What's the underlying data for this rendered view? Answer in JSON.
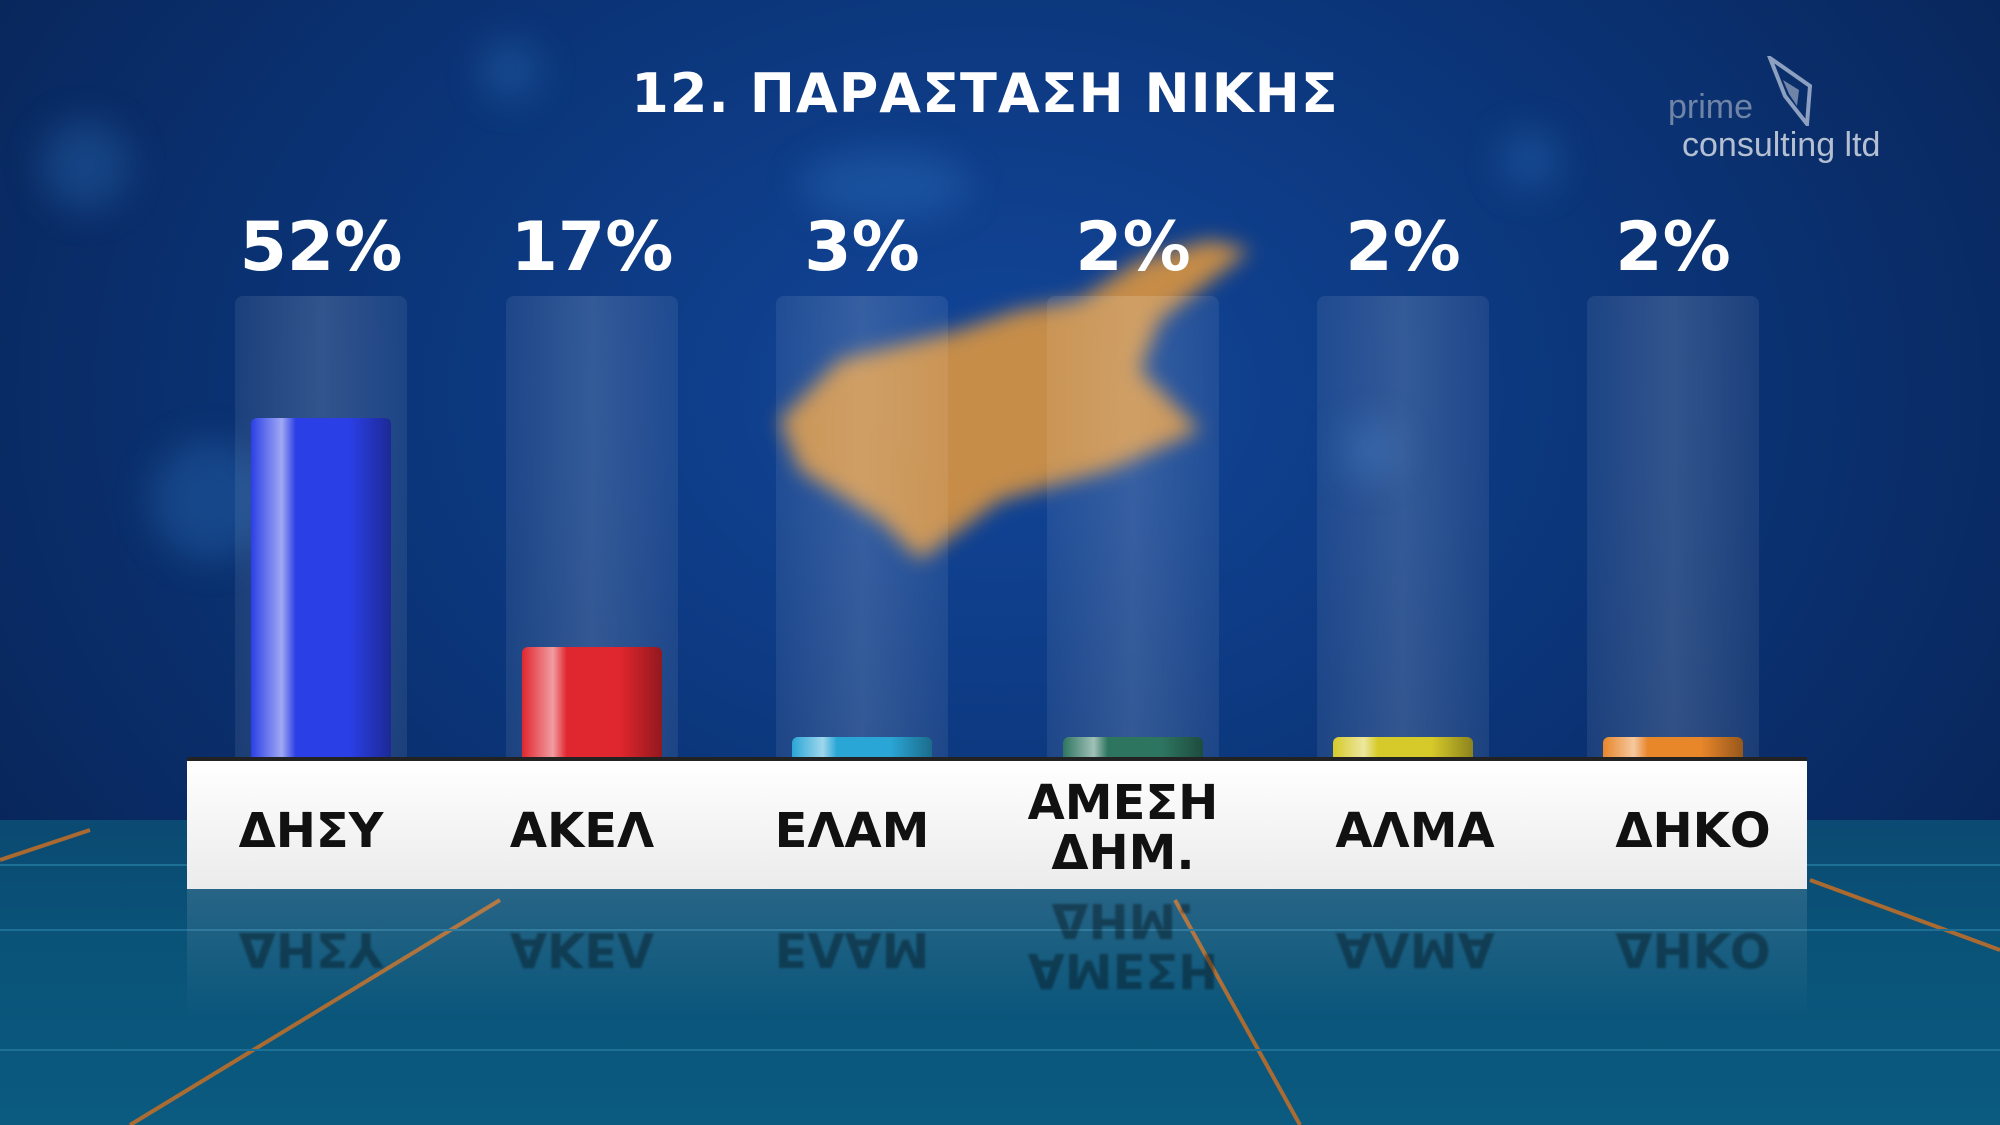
{
  "title": "12. ΠΑΡΑΣΤΑΣΗ ΝΙΚΗΣ",
  "logo": {
    "line1": "prime",
    "line2": "consulting ltd"
  },
  "chart_data": {
    "type": "bar",
    "title": "12. ΠΑΡΑΣΤΑΣΗ ΝΙΚΗΣ",
    "categories": [
      "ΔΗΣΥ",
      "ΑΚΕΛ",
      "ΕΛΑΜ",
      "ΑΜΕΣΗ ΔΗΜ.",
      "ΑΛΜΑ",
      "ΔΗΚΟ"
    ],
    "values": [
      52,
      17,
      3,
      2,
      2,
      2
    ],
    "value_labels": [
      "52%",
      "17%",
      "3%",
      "2%",
      "2%",
      "2%"
    ],
    "colors": [
      "#2b3fe6",
      "#e0262e",
      "#2aa6d6",
      "#2e7560",
      "#d6ca2a",
      "#e8862a"
    ],
    "unit": "%",
    "grid": false,
    "legend": "none"
  }
}
